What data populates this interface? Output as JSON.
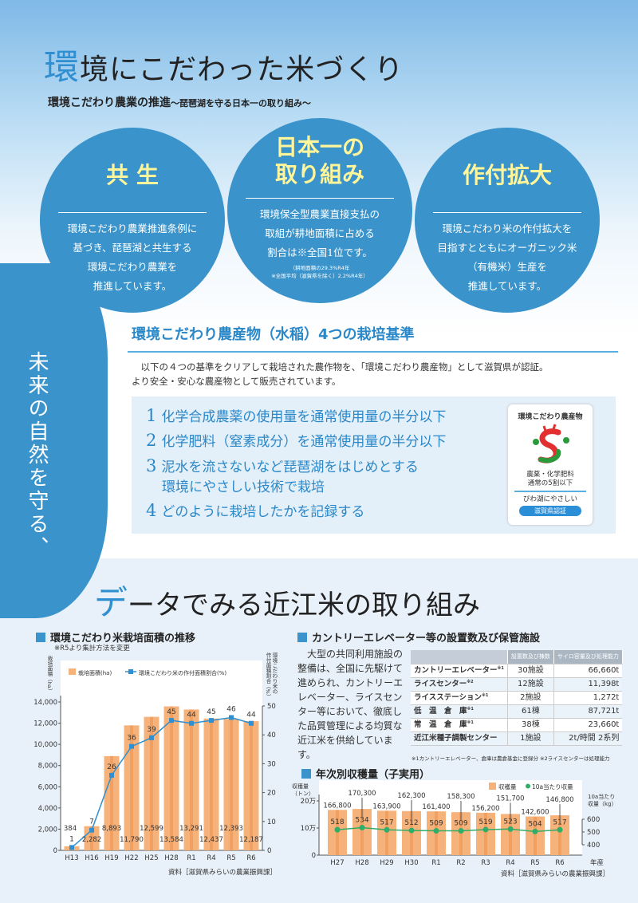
{
  "header": {
    "title_first": "環",
    "title_rest": "境にこだわった米づくり",
    "subtitle": "環境こだわり農業の推進",
    "subtitle_small": "〜琵琶湖を守る日本一の取り組み〜"
  },
  "circles": [
    {
      "head": "共 生",
      "body": [
        "環境こだわり農業推進条例に",
        "基づき、琵琶湖と共生する",
        "環境こだわり農業を",
        "推進しています。"
      ]
    },
    {
      "head": "日本一の取り組み",
      "head_lines": [
        "日本一の",
        "取り組み"
      ],
      "body": [
        "環境保全型農業直接支払の",
        "取組が耕地面積に占める",
        "割合は※全国1位です。"
      ],
      "notes": [
        "（耕地面積の29.3%R4年",
        "※全国平均（滋賀県を除く）2.2%R4年）"
      ]
    },
    {
      "head": "作付拡大",
      "body": [
        "環境こだわり米の作付拡大を",
        "目指すとともにオーガニック米",
        "（有機米）生産を",
        "推進しています。"
      ]
    }
  ],
  "side_tab": "未来の自然を守る、",
  "standards": {
    "title": "環境こだわり農産物（水稲）4つの栽培基準",
    "intro": [
      "　以下の４つの基準をクリアして栽培された農作物を、「環境こだわり農産物」として滋賀県が認証。",
      "より安全・安心な農産物として販売されています。"
    ],
    "items": [
      {
        "n": "1",
        "text": "化学合成農薬の使用量を通常使用量の半分以下"
      },
      {
        "n": "2",
        "text": "化学肥料（窒素成分）を通常使用量の半分以下"
      },
      {
        "n": "3",
        "text": "泥水を流さないなど琵琶湖をはじめとする",
        "text2": "環境にやさしい技術で栽培"
      },
      {
        "n": "4",
        "text": "どのように栽培したかを記録する"
      }
    ],
    "logo": {
      "arc": "環境こだわり農産物",
      "l2a": "農薬・化学肥料",
      "l2b": "通常の5割以下",
      "l3": "びわ湖にやさしい",
      "l4": "滋賀県認証"
    }
  },
  "data_section": {
    "title_first": "デ",
    "title_rest": "ータでみる近江米の取り組み"
  },
  "chart_data": [
    {
      "type": "bar+line",
      "title": "環境こだわり米栽培面積の推移",
      "note": "※R5より集計方法を変更",
      "ylabel": "栽培面積（ha）",
      "y2label": "環境こだわり米の作付面積割合（%）",
      "legend": [
        "栽培面積(ha)",
        "環境こだわり米の作付面積割合(%)"
      ],
      "categories": [
        "H13",
        "H16",
        "H19",
        "H22",
        "H25",
        "H28",
        "R1",
        "R4",
        "R5",
        "R6"
      ],
      "bars": [
        384,
        2282,
        8893,
        11790,
        12599,
        13584,
        13291,
        12437,
        12393,
        12187
      ],
      "bar_labels": [
        "384",
        "2,282",
        "8,893",
        "11,790",
        "12,599",
        "13,584",
        "13,291",
        "12,437",
        "12,393",
        "12,187"
      ],
      "line": [
        1,
        7,
        26,
        36,
        39,
        45,
        44,
        45,
        46,
        44
      ],
      "ylim": [
        0,
        14000
      ],
      "yticks": [
        "0",
        "2,000",
        "4,000",
        "6,000",
        "8,000",
        "10,000",
        "12,000",
        "14,000"
      ],
      "y2lim": [
        0,
        50
      ],
      "y2ticks": [
        "0",
        "10",
        "20",
        "30",
        "40",
        "50"
      ],
      "source": "資料［滋賀県みらいの農業振興課］",
      "colors": {
        "bar": "#f5b27a",
        "line": "#2f8fd0"
      }
    },
    {
      "type": "bar+line",
      "title": "年次別収穫量（子実用）",
      "ylabel": "収穫量（トン）",
      "y2label": "10a当たり収量（kg）",
      "xlabel": "年産",
      "legend": [
        "収穫量",
        "10a当たり収量"
      ],
      "categories": [
        "H27",
        "H28",
        "H29",
        "H30",
        "R1",
        "R2",
        "R3",
        "R4",
        "R5",
        "R6"
      ],
      "bars": [
        166800,
        170300,
        163900,
        162300,
        161400,
        158300,
        156200,
        151700,
        142600,
        146800
      ],
      "bar_labels": [
        "166,800",
        "170,300",
        "163,900",
        "162,300",
        "161,400",
        "158,300",
        "156,200",
        "151,700",
        "142,600",
        "146,800"
      ],
      "line": [
        518,
        534,
        517,
        512,
        509,
        509,
        519,
        523,
        504,
        517
      ],
      "ylim": [
        0,
        200000
      ],
      "yticks": [
        "0",
        "10万",
        "20万"
      ],
      "y2lim": [
        400,
        600
      ],
      "y2ticks": [
        "400",
        "500",
        "600"
      ],
      "source": "資料［滋賀県みらいの農業振興課］",
      "colors": {
        "bar": "#f5b27a",
        "line": "#2fae6a"
      }
    }
  ],
  "facilities": {
    "title": "カントリーエレベーター等の設置数及び保管施設",
    "text": "大型の共同利用施設の整備は、全国に先駆けて進められ、カントリーエレベーター、ライスセンター等において、徹底した品質管理による均質な近江米を供給しています。",
    "headers": [
      "設置数及び棟数",
      "サイロ容量及び処理能力"
    ],
    "rows": [
      {
        "name": "カントリーエレベーター",
        "mark": "※1",
        "count": "30施設",
        "capacity": "66,660t"
      },
      {
        "name": "ライスセンター",
        "mark": "※2",
        "count": "12施設",
        "capacity": "11,398t"
      },
      {
        "name": "ライスステーション",
        "mark": "※1",
        "count": "2施設",
        "capacity": "1,272t"
      },
      {
        "name": "低　温　倉　庫",
        "mark": "※1",
        "count": "61棟",
        "capacity": "87,721t"
      },
      {
        "name": "常　温　倉　庫",
        "mark": "※1",
        "count": "38棟",
        "capacity": "23,660t"
      },
      {
        "name": "近江米種子調製センター",
        "mark": "",
        "count": "1施設",
        "capacity": "2t/時間 2系列"
      }
    ],
    "footnote": "※1カントリーエレベーター、倉庫は農倉基金に登録分 ※2ライスセンターは処理能力"
  }
}
